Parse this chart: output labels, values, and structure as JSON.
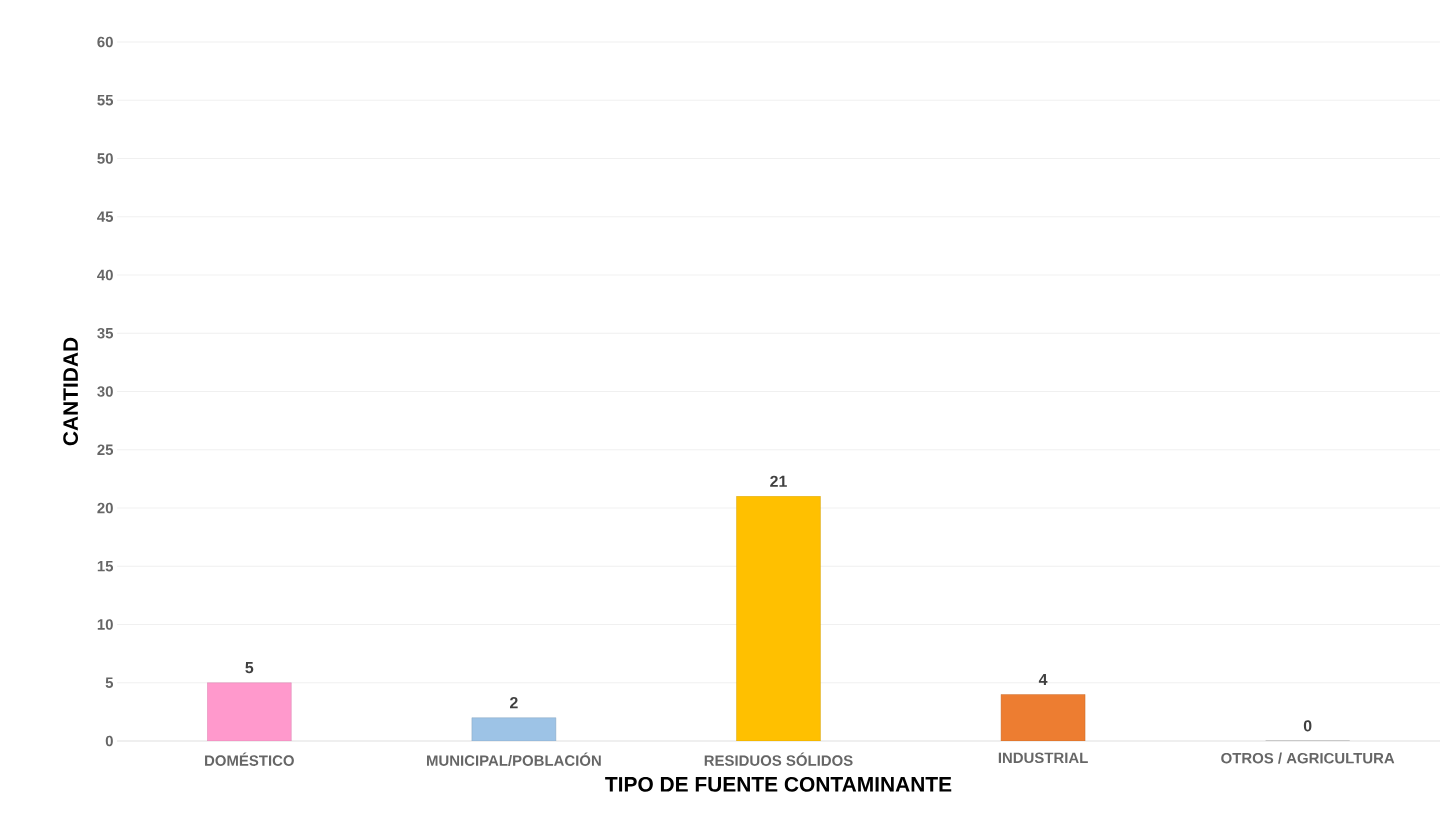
{
  "chart_data": {
    "type": "bar",
    "xlabel": "TIPO DE FUENTE CONTAMINANTE",
    "ylabel": "CANTIDAD",
    "categories": [
      "DOMÉSTICO",
      "MUNICIPAL/POBLACIÓN",
      "RESIDUOS SÓLIDOS",
      "INDUSTRIAL",
      "OTROS / AGRICULTURA"
    ],
    "values": [
      5,
      2,
      21,
      4,
      0
    ],
    "colors": [
      "#ff99cc",
      "#9dc3e6",
      "#ffc000",
      "#ed7d31",
      "#a5a5a5"
    ],
    "ylim": [
      0,
      60
    ],
    "yticks": [
      0,
      5,
      10,
      15,
      20,
      25,
      30,
      35,
      40,
      45,
      50,
      55,
      60
    ],
    "grid": "y",
    "data_labels": true
  }
}
